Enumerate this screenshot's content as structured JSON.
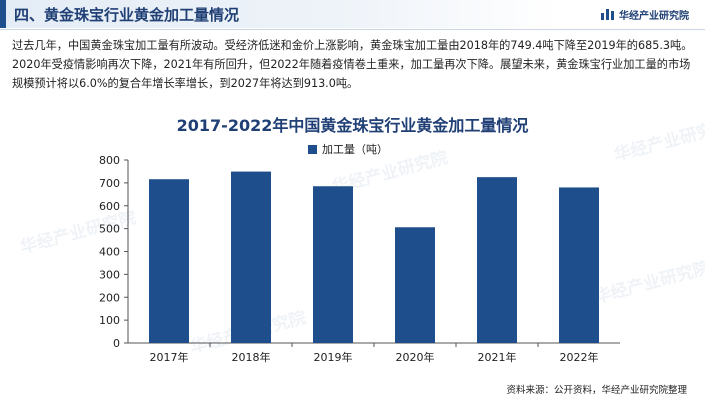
{
  "header": {
    "title": "四、黄金珠宝行业黄金加工量情况",
    "brand": "华经产业研究院"
  },
  "description": "过去几年，中国黄金珠宝加工量有所波动。受经济低迷和金价上涨影响，黄金珠宝加工量由2018年的749.4吨下降至2019年的685.3吨。2020年受疫情影响再次下降，2021年有所回升，但2022年随着疫情卷土重来，加工量再次下降。展望未来，黄金珠宝行业加工量的市场规模预计将以6.0%的复合年增长率增长，到2027年将达到913.0吨。",
  "watermark": "华经产业研究院",
  "source": "资料来源：公开资料，华经产业研究院整理",
  "colors": {
    "accent": "#1f4e8c",
    "title": "#1f3f75"
  },
  "chart_data": {
    "type": "bar",
    "title": "2017-2022年中国黄金珠宝行业黄金加工量情况",
    "categories": [
      "2017年",
      "2018年",
      "2019年",
      "2020年",
      "2021年",
      "2022年"
    ],
    "series": [
      {
        "name": "加工量（吨）",
        "values": [
          716,
          749.4,
          685.3,
          506,
          725,
          680
        ]
      }
    ],
    "ylim": [
      0,
      800
    ],
    "yticks": [
      0,
      100,
      200,
      300,
      400,
      500,
      600,
      700,
      800
    ],
    "grid": false,
    "legend": "top-center",
    "xlabel": "",
    "ylabel": ""
  }
}
